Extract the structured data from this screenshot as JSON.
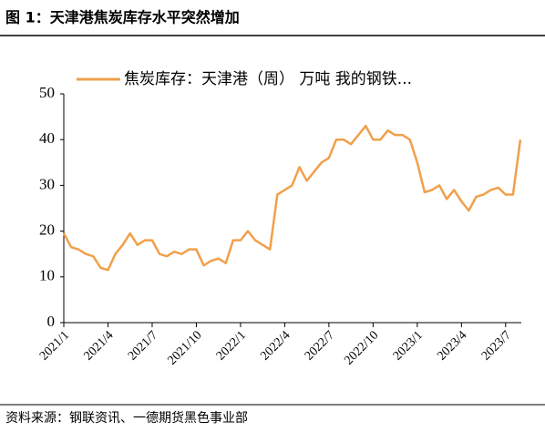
{
  "chart_data": {
    "type": "line",
    "title": "图 1：天津港焦炭库存水平突然增加",
    "source": "资料来源：钢联资讯、一德期货黑色事业部",
    "categories": [
      "2021/1",
      null,
      null,
      null,
      null,
      null,
      "2021/4",
      null,
      null,
      null,
      null,
      null,
      "2021/7",
      null,
      null,
      null,
      null,
      null,
      "2021/10",
      null,
      null,
      null,
      null,
      null,
      "2022/1",
      null,
      null,
      null,
      null,
      null,
      "2022/4",
      null,
      null,
      null,
      null,
      null,
      "2022/7",
      null,
      null,
      null,
      null,
      null,
      "2022/10",
      null,
      null,
      null,
      null,
      null,
      "2023/1",
      null,
      null,
      null,
      null,
      null,
      "2023/4",
      null,
      null,
      null,
      null,
      null,
      "2023/7",
      null,
      null
    ],
    "series": [
      {
        "name": "焦炭库存：天津港（周） 万吨 我的钢铁...",
        "color": "#f0a04b",
        "values": [
          19.5,
          16.5,
          16,
          15,
          14.5,
          12,
          11.5,
          15,
          17,
          19.5,
          17,
          18,
          18,
          15,
          14.5,
          15.5,
          15,
          16,
          16,
          12.5,
          13.5,
          14,
          13,
          18,
          18,
          20,
          18,
          17,
          16,
          28,
          29,
          30,
          34,
          31,
          33,
          35,
          36,
          40,
          40,
          39,
          41,
          43,
          40,
          40,
          42,
          41,
          41,
          40,
          35,
          28.5,
          29,
          30,
          27,
          29,
          26.5,
          24.5,
          27.5,
          28,
          29,
          29.5,
          28,
          28,
          40
        ]
      }
    ],
    "ylim": [
      0,
      50
    ],
    "yticks": [
      0,
      10,
      20,
      30,
      40,
      50
    ],
    "grid": false,
    "legend": "top"
  }
}
